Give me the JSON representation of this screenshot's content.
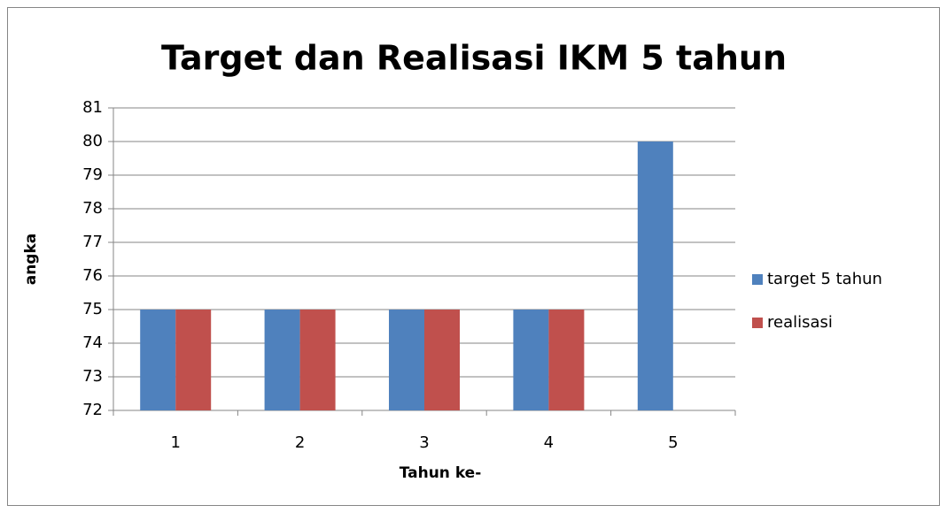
{
  "chart_data": {
    "type": "bar",
    "title": "Target dan Realisasi IKM 5 tahun",
    "x_label": "Tahun ke-",
    "y_label": "angka",
    "categories": [
      "1",
      "2",
      "3",
      "4",
      "5"
    ],
    "series": [
      {
        "name": "target 5 tahun",
        "color": "#4f81bd",
        "values": [
          75,
          75,
          75,
          75,
          80
        ]
      },
      {
        "name": "realisasi",
        "color": "#c0504d",
        "values": [
          75,
          75,
          75,
          75,
          null
        ]
      }
    ],
    "ylim": [
      72,
      81
    ],
    "yticks": [
      72,
      73,
      74,
      75,
      76,
      77,
      78,
      79,
      80,
      81
    ],
    "grid": true,
    "legend": "right"
  }
}
